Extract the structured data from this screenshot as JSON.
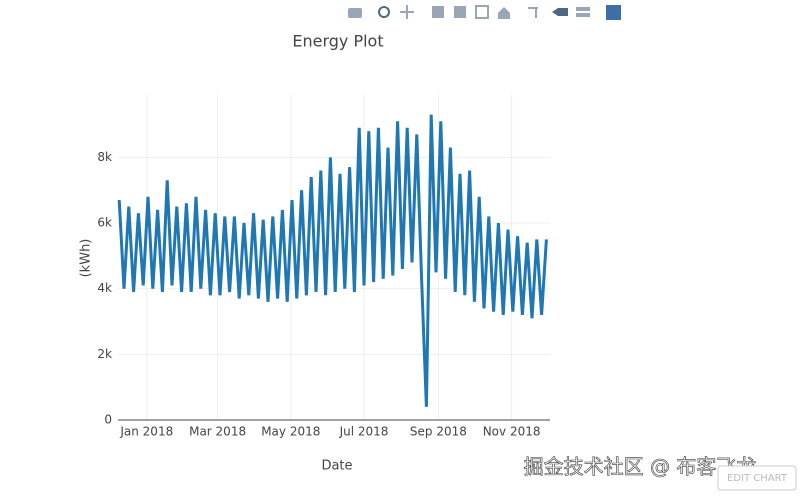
{
  "chart_data": {
    "type": "line",
    "title": "Energy Plot",
    "x_label": "Date",
    "y_label": "(kWh)",
    "x": [
      "2017-12-09",
      "2017-12-13",
      "2017-12-17",
      "2017-12-21",
      "2017-12-25",
      "2017-12-29",
      "2018-01-02",
      "2018-01-06",
      "2018-01-10",
      "2018-01-14",
      "2018-01-18",
      "2018-01-22",
      "2018-01-26",
      "2018-01-30",
      "2018-02-03",
      "2018-02-07",
      "2018-02-11",
      "2018-02-15",
      "2018-02-19",
      "2018-02-23",
      "2018-02-27",
      "2018-03-03",
      "2018-03-07",
      "2018-03-11",
      "2018-03-15",
      "2018-03-19",
      "2018-03-23",
      "2018-03-27",
      "2018-03-31",
      "2018-04-04",
      "2018-04-08",
      "2018-04-12",
      "2018-04-16",
      "2018-04-20",
      "2018-04-24",
      "2018-04-28",
      "2018-05-02",
      "2018-05-06",
      "2018-05-10",
      "2018-05-14",
      "2018-05-18",
      "2018-05-22",
      "2018-05-26",
      "2018-05-30",
      "2018-06-03",
      "2018-06-07",
      "2018-06-11",
      "2018-06-15",
      "2018-06-19",
      "2018-06-23",
      "2018-06-27",
      "2018-07-01",
      "2018-07-05",
      "2018-07-09",
      "2018-07-13",
      "2018-07-17",
      "2018-07-21",
      "2018-07-25",
      "2018-07-29",
      "2018-08-02",
      "2018-08-06",
      "2018-08-10",
      "2018-08-14",
      "2018-08-18",
      "2018-08-22",
      "2018-08-26",
      "2018-08-30",
      "2018-09-03",
      "2018-09-07",
      "2018-09-11",
      "2018-09-15",
      "2018-09-19",
      "2018-09-23",
      "2018-09-27",
      "2018-10-01",
      "2018-10-05",
      "2018-10-09",
      "2018-10-13",
      "2018-10-17",
      "2018-10-21",
      "2018-10-25",
      "2018-10-29",
      "2018-11-02",
      "2018-11-06",
      "2018-11-10",
      "2018-11-14",
      "2018-11-18",
      "2018-11-22",
      "2018-11-26",
      "2018-11-30"
    ],
    "series": [
      {
        "name": "Energy",
        "color": "#1f77b4",
        "values": [
          6700,
          4000,
          6500,
          3900,
          6300,
          4100,
          6800,
          4000,
          6400,
          3900,
          7300,
          4100,
          6500,
          3900,
          6600,
          3900,
          6800,
          4000,
          6400,
          3800,
          6300,
          3800,
          6200,
          3900,
          6200,
          3700,
          6000,
          3800,
          6300,
          3700,
          6100,
          3600,
          6200,
          3700,
          6400,
          3600,
          6700,
          3700,
          7000,
          3800,
          7400,
          3900,
          7600,
          3800,
          8000,
          3900,
          7500,
          4000,
          7700,
          3900,
          8900,
          4100,
          8800,
          4200,
          8900,
          4300,
          8300,
          4400,
          9100,
          4600,
          8900,
          4800,
          8700,
          4300,
          400,
          9300,
          4500,
          9100,
          4300,
          8300,
          3900,
          7500,
          3800,
          7600,
          3600,
          6800,
          3400,
          6200,
          3300,
          6000,
          3200,
          5800,
          3300,
          5600,
          3200,
          5400,
          3100,
          5500,
          3200,
          5500
        ]
      }
    ],
    "xlim": [
      "2017-12-08",
      "2018-12-03"
    ],
    "xticks": [
      {
        "value": "2018-01-01",
        "label": "Jan 2018"
      },
      {
        "value": "2018-03-01",
        "label": "Mar 2018"
      },
      {
        "value": "2018-05-01",
        "label": "May 2018"
      },
      {
        "value": "2018-07-01",
        "label": "Jul 2018"
      },
      {
        "value": "2018-09-01",
        "label": "Sep 2018"
      },
      {
        "value": "2018-11-01",
        "label": "Nov 2018"
      }
    ],
    "ylim": [
      0,
      9900
    ],
    "yticks": [
      0,
      {
        "value": 2000,
        "label": "2k"
      },
      {
        "value": 4000,
        "label": "4k"
      },
      {
        "value": 6000,
        "label": "6k"
      },
      {
        "value": 8000,
        "label": "8k"
      }
    ],
    "grid": true
  },
  "watermark": "掘金技术社区 @ 布客飞龙",
  "button": "EDIT CHART"
}
